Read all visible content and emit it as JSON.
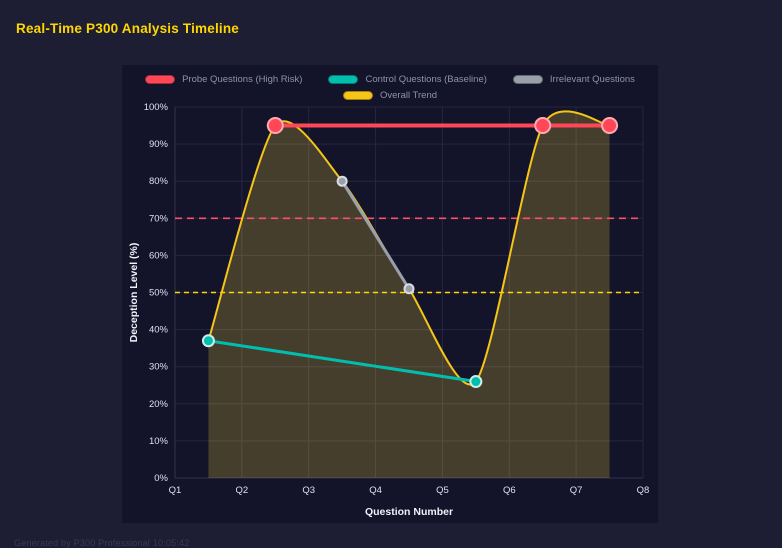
{
  "title": "Real-Time P300 Analysis Timeline",
  "footer": "Generated by P300 Professional  10:05:42",
  "colors": {
    "page_bg": "#1d1d33",
    "panel_bg": "#13132a",
    "title": "#ffd700",
    "grid": "#262640",
    "axis_text": "#dde1ee",
    "legend_text": "#8d93ad",
    "probe_red": "#ff4757",
    "control_teal": "#00bfae",
    "irrelevant_gray": "#9aa0aa",
    "trend_yellow": "#f5c518",
    "threshold_pink": "#ff4d6d",
    "threshold_yellow": "#ffd700",
    "area_fill": "rgba(255,220,60,0.22)"
  },
  "chart_data": {
    "type": "line",
    "title": "Real-Time P300 Analysis Timeline",
    "xlabel": "Question Number",
    "ylabel": "Deception Level (%)",
    "xlim": [
      1,
      8
    ],
    "ylim": [
      0,
      100
    ],
    "x_ticks": [
      "Q1",
      "Q2",
      "Q3",
      "Q4",
      "Q5",
      "Q6",
      "Q7",
      "Q8"
    ],
    "y_ticks": [
      "0%",
      "10%",
      "20%",
      "30%",
      "40%",
      "50%",
      "60%",
      "70%",
      "80%",
      "90%",
      "100%"
    ],
    "grid": true,
    "legend_position": "top",
    "legend_rows": [
      [
        0,
        1,
        2
      ],
      [
        3
      ]
    ],
    "series": [
      {
        "name": "Probe Questions (High Risk)",
        "color": "#ff4757",
        "line_width": 4,
        "marker_radius": 7.5,
        "marker_stroke": "#ffaab2",
        "smooth": false,
        "points": [
          [
            2.5,
            95
          ],
          [
            6.5,
            95
          ],
          [
            7.5,
            95
          ]
        ]
      },
      {
        "name": "Control Questions (Baseline)",
        "color": "#00bfae",
        "line_width": 3,
        "marker_radius": 5.5,
        "marker_stroke": "#cdeeea",
        "smooth": false,
        "points": [
          [
            1.5,
            37
          ],
          [
            5.5,
            26
          ]
        ]
      },
      {
        "name": "Irrelevant Questions",
        "color": "#9aa0aa",
        "line_width": 3,
        "marker_radius": 4.5,
        "marker_stroke": "#d8dde2",
        "smooth": false,
        "points": [
          [
            3.5,
            80
          ],
          [
            4.5,
            51
          ]
        ]
      },
      {
        "name": "Overall Trend",
        "color": "#f5c518",
        "line_width": 2,
        "marker_radius": 0,
        "marker_stroke": "",
        "smooth": true,
        "area_fill": "rgba(255,220,60,0.22)",
        "points": [
          [
            1.5,
            37
          ],
          [
            2.5,
            95
          ],
          [
            3.5,
            80
          ],
          [
            4.5,
            51
          ],
          [
            5.5,
            26
          ],
          [
            6.5,
            95
          ],
          [
            7.5,
            95
          ]
        ]
      }
    ],
    "thresholds": [
      {
        "y": 70,
        "color": "#ff4d6d",
        "dash": "7,5"
      },
      {
        "y": 50,
        "color": "#ffd700",
        "dash": "5,4"
      }
    ]
  }
}
